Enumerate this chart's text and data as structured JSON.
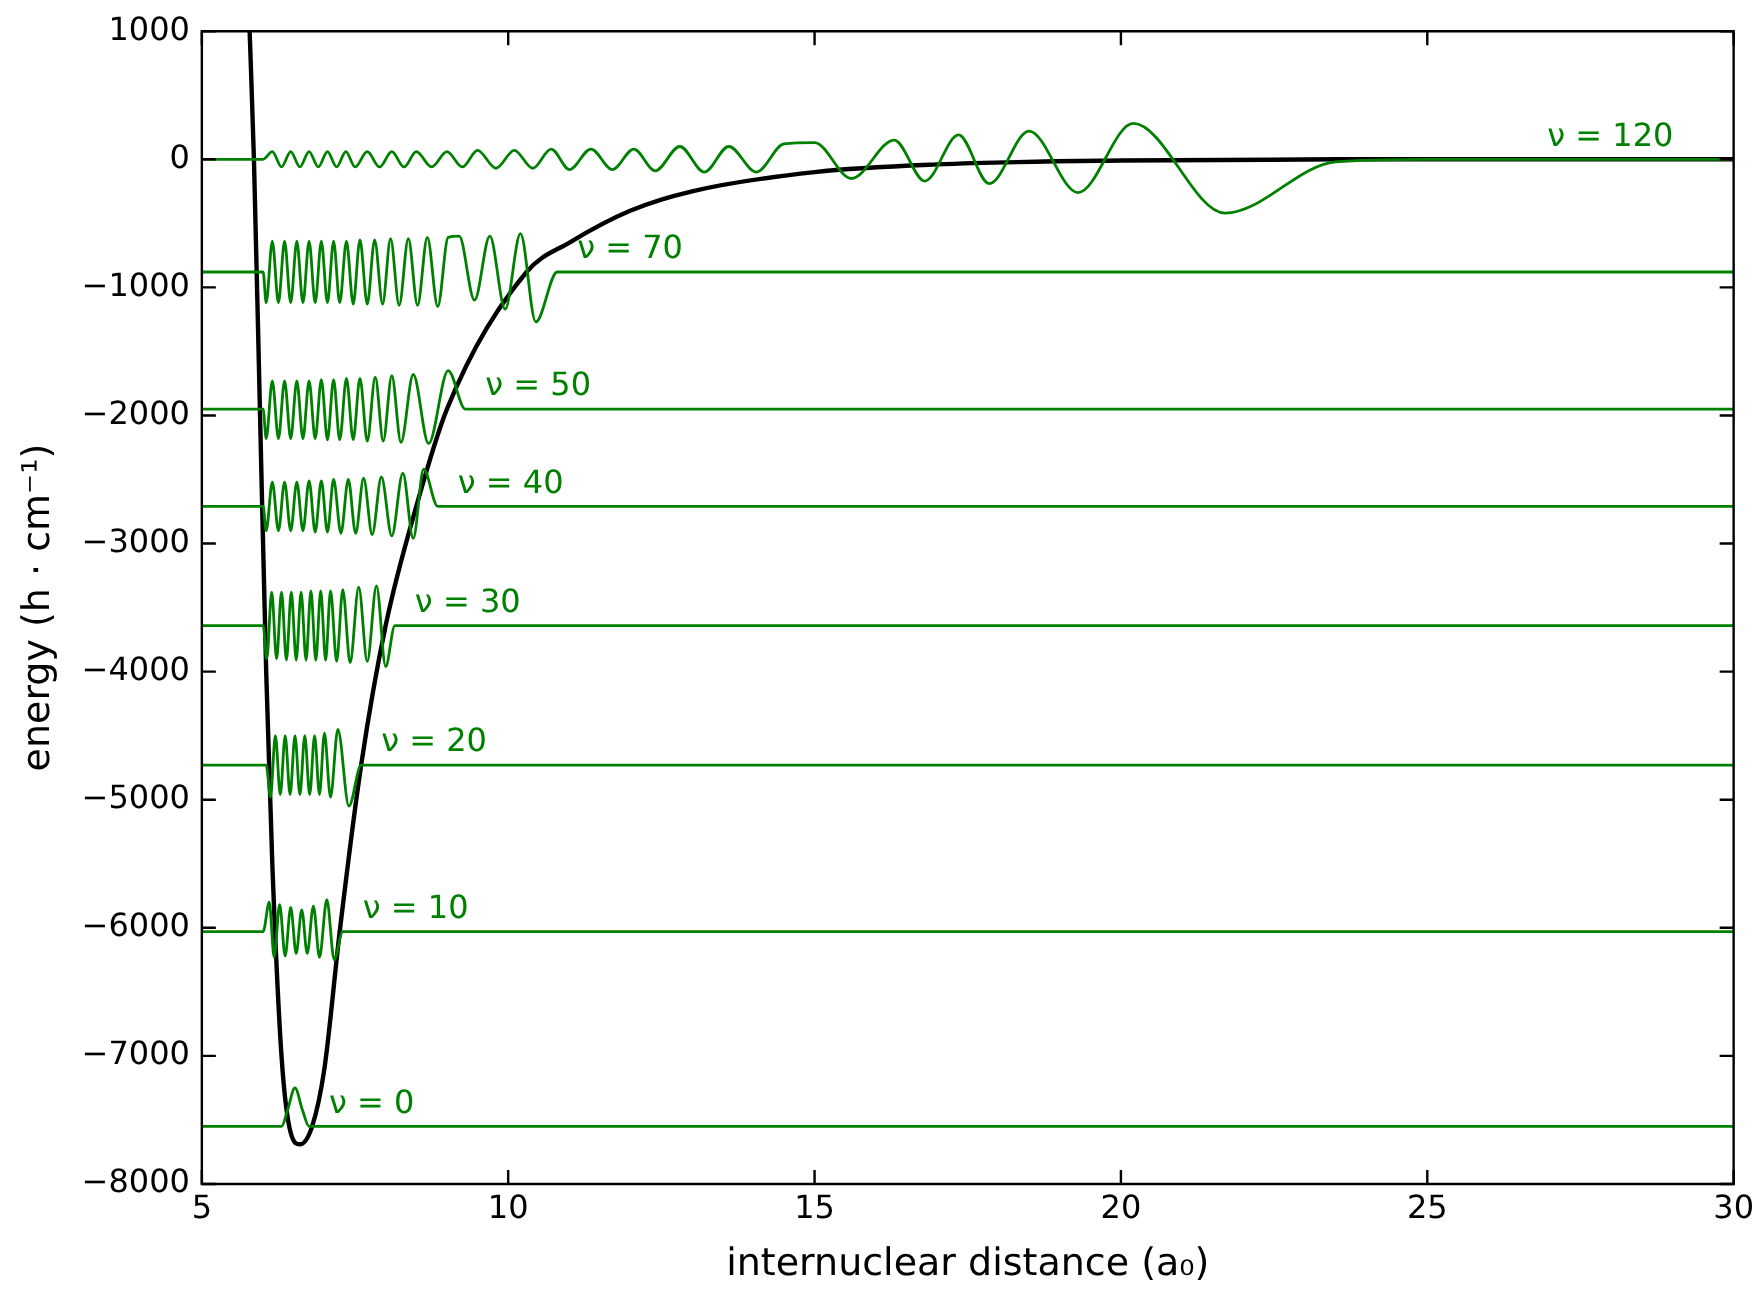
{
  "chart_data": {
    "type": "line",
    "xlabel": "internuclear distance (a₀)",
    "ylabel": "energy (h · cm⁻¹)",
    "xlim": [
      5,
      30
    ],
    "xticks": [
      5,
      10,
      15,
      20,
      25,
      30
    ],
    "ylim": [
      -8000,
      1000
    ],
    "yticks": [
      -8000,
      -7000,
      -6000,
      -5000,
      -4000,
      -3000,
      -2000,
      -1000,
      0,
      1000
    ],
    "grid": false,
    "legend": false,
    "marker": "none",
    "line_style": "solid",
    "series": [
      {
        "color": "#008000",
        "x": [
          5,
          6.3,
          6.4,
          6.52,
          6.64,
          6.75,
          30
        ],
        "name": "ν = 0",
        "values": [
          -7550,
          -7550,
          -7420,
          -7250,
          -7420,
          -7550,
          -7550
        ]
      },
      {
        "color": "#008000",
        "x": [
          5,
          6.0,
          6.1,
          6.18,
          6.27,
          6.36,
          6.45,
          6.54,
          6.63,
          6.72,
          6.82,
          6.92,
          7.04,
          7.16,
          7.3,
          30
        ],
        "name": "ν = 10",
        "values": [
          -6030,
          -6030,
          -5800,
          -6230,
          -5820,
          -6220,
          -5840,
          -6200,
          -5860,
          -6200,
          -5830,
          -6230,
          -5780,
          -6250,
          -6030,
          -6030
        ]
      },
      {
        "color": "#008000",
        "x": [
          5,
          6.05,
          6.12,
          6.2,
          6.28,
          6.36,
          6.44,
          6.52,
          6.6,
          6.68,
          6.76,
          6.84,
          6.92,
          7.0,
          7.1,
          7.22,
          7.4,
          7.6,
          30
        ],
        "name": "ν = 20",
        "values": [
          -4730,
          -4730,
          -4980,
          -4500,
          -4960,
          -4500,
          -4960,
          -4500,
          -4960,
          -4500,
          -4960,
          -4500,
          -4960,
          -4480,
          -4980,
          -4450,
          -5050,
          -4730,
          -4730
        ]
      },
      {
        "color": "#008000",
        "x": [
          5,
          6.0,
          6.06,
          6.14,
          6.22,
          6.3,
          6.38,
          6.46,
          6.54,
          6.62,
          6.7,
          6.78,
          6.86,
          6.94,
          7.02,
          7.1,
          7.2,
          7.3,
          7.42,
          7.56,
          7.7,
          7.85,
          8.0,
          8.15,
          30
        ],
        "name": "ν = 30",
        "values": [
          -3640,
          -3640,
          -3900,
          -3380,
          -3900,
          -3380,
          -3910,
          -3380,
          -3910,
          -3380,
          -3910,
          -3370,
          -3910,
          -3370,
          -3910,
          -3370,
          -3920,
          -3360,
          -3930,
          -3340,
          -3920,
          -3330,
          -3960,
          -3640,
          -3640
        ]
      },
      {
        "color": "#008000",
        "x": [
          5,
          6.0,
          6.05,
          6.15,
          6.25,
          6.35,
          6.45,
          6.55,
          6.65,
          6.75,
          6.85,
          6.95,
          7.05,
          7.15,
          7.27,
          7.39,
          7.51,
          7.64,
          7.78,
          7.93,
          8.1,
          8.28,
          8.45,
          8.62,
          8.85,
          30
        ],
        "name": "ν = 40",
        "values": [
          -2710,
          -2710,
          -2900,
          -2520,
          -2900,
          -2520,
          -2900,
          -2520,
          -2900,
          -2510,
          -2910,
          -2510,
          -2910,
          -2500,
          -2920,
          -2500,
          -2920,
          -2490,
          -2930,
          -2480,
          -2940,
          -2450,
          -2960,
          -2420,
          -2710,
          -2710
        ]
      },
      {
        "color": "#008000",
        "x": [
          5,
          6.0,
          6.05,
          6.15,
          6.25,
          6.35,
          6.45,
          6.55,
          6.65,
          6.75,
          6.85,
          6.95,
          7.05,
          7.15,
          7.25,
          7.36,
          7.47,
          7.58,
          7.7,
          7.83,
          7.96,
          8.1,
          8.25,
          8.45,
          8.7,
          9.02,
          9.3,
          30
        ],
        "name": "ν = 50",
        "values": [
          -1950,
          -1950,
          -2180,
          -1730,
          -2180,
          -1730,
          -2180,
          -1730,
          -2180,
          -1730,
          -2180,
          -1720,
          -2190,
          -1720,
          -2190,
          -1710,
          -2190,
          -1710,
          -2200,
          -1700,
          -2200,
          -1690,
          -2210,
          -1680,
          -2220,
          -1650,
          -1950,
          -1950
        ]
      },
      {
        "color": "#008000",
        "x": [
          5,
          6.0,
          6.05,
          6.15,
          6.25,
          6.35,
          6.45,
          6.55,
          6.65,
          6.75,
          6.85,
          6.95,
          7.05,
          7.15,
          7.25,
          7.36,
          7.47,
          7.58,
          7.7,
          7.82,
          7.95,
          8.08,
          8.22,
          8.37,
          8.52,
          8.68,
          8.85,
          9.02,
          9.2,
          9.45,
          9.7,
          9.95,
          10.2,
          10.45,
          10.8,
          30
        ],
        "name": "ν = 70",
        "values": [
          -880,
          -880,
          -1120,
          -640,
          -1120,
          -640,
          -1120,
          -640,
          -1120,
          -640,
          -1120,
          -640,
          -1120,
          -640,
          -1120,
          -640,
          -1130,
          -630,
          -1130,
          -630,
          -1130,
          -620,
          -1140,
          -620,
          -1140,
          -610,
          -1150,
          -610,
          -600,
          -1100,
          -600,
          -1170,
          -580,
          -1270,
          -880,
          -880
        ]
      },
      {
        "color": "#008000",
        "x": [
          5,
          6.0,
          6.15,
          6.3,
          6.45,
          6.6,
          6.75,
          6.9,
          7.05,
          7.2,
          7.35,
          7.5,
          7.7,
          7.9,
          8.1,
          8.3,
          8.5,
          8.75,
          9.0,
          9.25,
          9.5,
          9.8,
          10.1,
          10.4,
          10.7,
          11.0,
          11.35,
          11.7,
          12.05,
          12.4,
          12.8,
          13.2,
          13.6,
          14.05,
          14.5,
          15.0,
          15.6,
          16.3,
          16.8,
          17.35,
          17.85,
          18.5,
          19.3,
          20.2,
          21.7,
          23.5,
          25,
          30
        ],
        "name": "ν = 120",
        "values": [
          0,
          0,
          60,
          -60,
          60,
          -60,
          60,
          -60,
          60,
          -60,
          60,
          -60,
          60,
          -60,
          60,
          -60,
          60,
          -60,
          60,
          -60,
          70,
          -70,
          70,
          -70,
          80,
          -80,
          80,
          -80,
          80,
          -90,
          100,
          -100,
          100,
          -100,
          120,
          130,
          -150,
          150,
          -170,
          190,
          -190,
          220,
          -260,
          280,
          -420,
          -20,
          0,
          0
        ]
      },
      {
        "color": "#000000",
        "x": [
          5.78,
          5.85,
          5.95,
          6.05,
          6.15,
          6.3,
          6.45,
          6.6,
          6.8,
          7.0,
          7.25,
          7.6,
          8.0,
          8.5,
          9.0,
          10.3,
          11,
          12,
          13,
          15,
          17,
          20,
          25,
          30
        ],
        "values": [
          1000,
          0,
          -2000,
          -4000,
          -5500,
          -7000,
          -7600,
          -7690,
          -7550,
          -7100,
          -6030,
          -4730,
          -3640,
          -2710,
          -1950,
          -880,
          -650,
          -400,
          -250,
          -100,
          -40,
          -10,
          0,
          0
        ]
      }
    ]
  }
}
